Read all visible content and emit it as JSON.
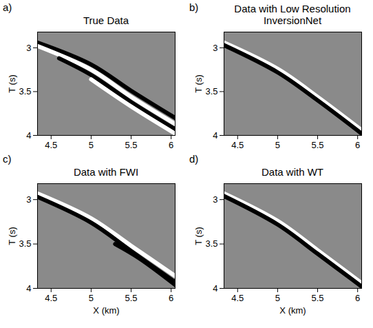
{
  "chart_data": [
    {
      "type": "line",
      "panel_label": "a)",
      "title": "True Data",
      "y_label": "T (s)",
      "xlim": [
        4.33,
        6.05
      ],
      "xticks": [
        4.5,
        5,
        5.5,
        6
      ],
      "ylim": [
        2.82,
        4.0
      ],
      "yticks": [
        3,
        3.5,
        4
      ],
      "grid": false,
      "series": [
        {
          "color": "#000000",
          "x": [
            4.33,
            5.0,
            5.5,
            6.05
          ],
          "values": [
            2.94,
            3.19,
            3.49,
            3.8
          ]
        },
        {
          "color": "#ffffff",
          "x": [
            4.33,
            5.0,
            5.5,
            6.05
          ],
          "values": [
            2.98,
            3.25,
            3.56,
            3.87
          ]
        },
        {
          "color": "#000000",
          "x": [
            4.6,
            5.0,
            5.5,
            6.05
          ],
          "values": [
            3.12,
            3.31,
            3.62,
            3.93
          ]
        },
        {
          "color": "#ffffff",
          "x": [
            5.0,
            5.5,
            6.05
          ],
          "values": [
            3.36,
            3.67,
            3.98
          ]
        }
      ]
    },
    {
      "type": "line",
      "panel_label": "b)",
      "title": "Data with Low Resolution InversionNet",
      "y_label": "T (s)",
      "xlim": [
        4.33,
        6.05
      ],
      "xticks": [
        4.5,
        5,
        5.5,
        6
      ],
      "ylim": [
        2.82,
        4.0
      ],
      "yticks": [
        3,
        3.5,
        4
      ],
      "grid": false,
      "series": [
        {
          "color": "#ffffff",
          "x": [
            4.33,
            5.0,
            5.5,
            6.05
          ],
          "values": [
            2.94,
            3.24,
            3.56,
            3.94
          ]
        },
        {
          "color": "#000000",
          "x": [
            4.33,
            5.0,
            5.5,
            6.05
          ],
          "values": [
            2.97,
            3.28,
            3.6,
            3.98
          ]
        }
      ]
    },
    {
      "type": "line",
      "panel_label": "c)",
      "title": "Data with FWI",
      "x_label": "X (km)",
      "y_label": "T (s)",
      "xlim": [
        4.33,
        6.05
      ],
      "xticks": [
        4.5,
        5,
        5.5,
        6
      ],
      "ylim": [
        2.82,
        4.0
      ],
      "yticks": [
        3,
        3.5,
        4
      ],
      "grid": false,
      "series": [
        {
          "color": "#ffffff",
          "x": [
            4.33,
            5.0,
            5.5,
            6.05
          ],
          "values": [
            2.93,
            3.21,
            3.52,
            3.86
          ]
        },
        {
          "color": "#000000",
          "x": [
            4.33,
            5.0,
            5.5,
            6.05
          ],
          "values": [
            2.97,
            3.26,
            3.58,
            3.93
          ]
        },
        {
          "color": "#000000",
          "x": [
            5.3,
            5.6,
            6.05
          ],
          "values": [
            3.5,
            3.66,
            3.96
          ]
        }
      ]
    },
    {
      "type": "line",
      "panel_label": "d)",
      "title": "Data with WT",
      "x_label": "X (km)",
      "y_label": "T (s)",
      "xlim": [
        4.33,
        6.05
      ],
      "xticks": [
        4.5,
        5,
        5.5,
        6
      ],
      "ylim": [
        2.82,
        4.0
      ],
      "yticks": [
        3,
        3.5,
        4
      ],
      "grid": false,
      "series": [
        {
          "color": "#ffffff",
          "x": [
            4.33,
            5.0,
            5.5,
            6.05
          ],
          "values": [
            2.93,
            3.24,
            3.57,
            3.94
          ]
        },
        {
          "color": "#000000",
          "x": [
            4.33,
            5.0,
            5.5,
            6.05
          ],
          "values": [
            2.96,
            3.28,
            3.61,
            3.98
          ]
        }
      ]
    }
  ]
}
